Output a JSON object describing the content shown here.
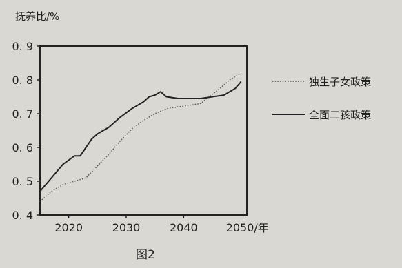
{
  "chart_data": {
    "type": "line",
    "ylabel": "抚养比/%",
    "xlabel": "2050/年",
    "caption": "图2",
    "xlim": [
      2015,
      2051
    ],
    "ylim": [
      0.4,
      0.9
    ],
    "x_ticks": [
      2020,
      2030,
      2040
    ],
    "x_tick_labels": [
      "2020",
      "2030",
      "2040"
    ],
    "y_ticks": [
      0.4,
      0.5,
      0.6,
      0.7,
      0.8,
      0.9
    ],
    "y_tick_labels": [
      "0. 4",
      "0. 5",
      "0. 6",
      "0. 7",
      "0. 8",
      "0. 9"
    ],
    "legend_position": "right",
    "series": [
      {
        "name": "独生子女政策",
        "style": "dotted",
        "color": "#555555",
        "x": [
          2015,
          2017,
          2019,
          2021,
          2023,
          2025,
          2027,
          2029,
          2031,
          2033,
          2035,
          2037,
          2039,
          2041,
          2043,
          2044,
          2046,
          2048,
          2050
        ],
        "y": [
          0.44,
          0.47,
          0.49,
          0.5,
          0.51,
          0.545,
          0.58,
          0.62,
          0.655,
          0.68,
          0.7,
          0.715,
          0.72,
          0.725,
          0.73,
          0.745,
          0.77,
          0.8,
          0.82
        ]
      },
      {
        "name": "全面二孩政策",
        "style": "solid",
        "color": "#222222",
        "x": [
          2015,
          2017,
          2019,
          2021,
          2022,
          2023,
          2024,
          2025,
          2027,
          2029,
          2031,
          2033,
          2034,
          2035,
          2036,
          2037,
          2039,
          2041,
          2043,
          2045,
          2047,
          2049,
          2050
        ],
        "y": [
          0.47,
          0.51,
          0.55,
          0.575,
          0.575,
          0.6,
          0.625,
          0.64,
          0.66,
          0.69,
          0.715,
          0.735,
          0.75,
          0.755,
          0.765,
          0.75,
          0.745,
          0.745,
          0.745,
          0.75,
          0.755,
          0.775,
          0.795
        ]
      }
    ]
  }
}
